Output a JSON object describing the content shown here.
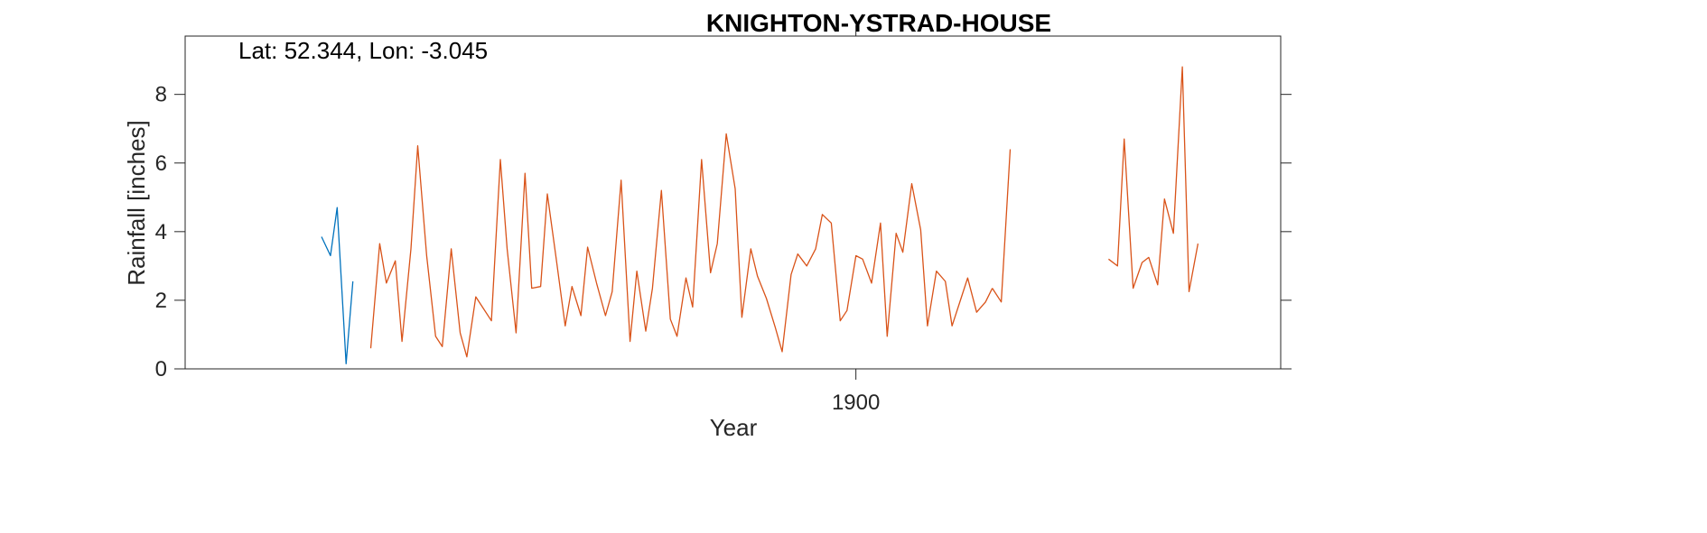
{
  "chart_data": {
    "type": "line",
    "title": "KNIGHTON-YSTRAD-HOUSE",
    "annotation": "Lat: 52.344, Lon: -3.045",
    "xlabel": "Year",
    "ylabel": "Rainfall [inches]",
    "xlim": [
      1870,
      1919
    ],
    "ylim": [
      0,
      9.7
    ],
    "xticks": [
      1900
    ],
    "xtick_labels": [
      "1900"
    ],
    "yticks": [
      0,
      2,
      4,
      6,
      8
    ],
    "ytick_labels": [
      "0",
      "2",
      "4",
      "6",
      "8"
    ],
    "grid": false,
    "colors": {
      "axis": "#262626",
      "series1": "#0072BD",
      "series2": "#D95319"
    },
    "series": [
      {
        "x": [
          1876.1,
          1876.5,
          1876.8,
          1877.2,
          1877.5
        ],
        "values": [
          3.85,
          3.3,
          4.7,
          0.15,
          2.55
        ]
      },
      {
        "x": [
          1878.3,
          1878.7,
          1879.0,
          1879.4,
          1879.7,
          1880.1,
          1880.4,
          1880.8,
          1881.2,
          1881.5,
          1881.9,
          1882.3,
          1882.6,
          1883.0,
          1883.3,
          1883.7,
          1884.1,
          1884.4,
          1884.8,
          1885.2,
          1885.5,
          1885.9,
          1886.2,
          1886.6,
          1887.0,
          1887.3,
          1887.7,
          1888.0,
          1888.4,
          1888.8,
          1889.1,
          1889.5,
          1889.9,
          1890.2,
          1890.6,
          1890.9,
          1891.3,
          1891.7,
          1892.0,
          1892.4,
          1892.7,
          1893.1,
          1893.5,
          1893.8,
          1894.2,
          1894.6,
          1894.9,
          1895.3,
          1895.6,
          1896.0,
          1896.4,
          1896.7,
          1897.1,
          1897.4,
          1897.8,
          1898.2,
          1898.5,
          1898.9,
          1899.3,
          1899.6,
          1900.0,
          1900.3,
          1900.7,
          1901.1,
          1901.4,
          1901.8,
          1902.1,
          1902.5,
          1902.9,
          1903.2,
          1903.6,
          1904.0,
          1904.3,
          1904.7,
          1905.0,
          1905.4,
          1905.8,
          1906.1
        ],
        "values": [
          0.6,
          3.65,
          2.5,
          3.15,
          0.8,
          3.5,
          6.5,
          3.3,
          0.95,
          0.65,
          3.5,
          1.05,
          0.35,
          2.1,
          1.8,
          1.4,
          6.1,
          3.5,
          1.05,
          5.7,
          2.35,
          2.4,
          5.1,
          3.2,
          1.25,
          2.4,
          1.55,
          3.55,
          2.5,
          1.55,
          2.25,
          5.5,
          0.8,
          2.85,
          1.1,
          2.35,
          5.2,
          1.45,
          0.95,
          2.65,
          1.8,
          6.1,
          2.8,
          3.65,
          6.85,
          5.25,
          1.5,
          3.5,
          2.7,
          2.05,
          1.2,
          0.5,
          2.75,
          3.35,
          3.0,
          3.5,
          4.5,
          4.25,
          1.4,
          1.7,
          3.3,
          3.2,
          2.5,
          4.25,
          0.95,
          3.95,
          3.4,
          5.4,
          4.05,
          1.25,
          2.85,
          2.55,
          1.25,
          2.05,
          2.65,
          1.65,
          1.95,
          2.35
        ]
      },
      {
        "x": [
          1906.1,
          1906.5,
          1906.9,
          1907.2
        ],
        "values": [
          2.35,
          1.95,
          6.4,
          null
        ]
      },
      {
        "x": [
          1911.3,
          1911.7,
          1912.0,
          1912.4,
          1912.8,
          1913.1,
          1913.5,
          1913.8,
          1914.2,
          1914.6,
          1914.9,
          1915.3,
          1915.7
        ],
        "values": [
          3.2,
          3.0,
          6.7,
          2.35,
          3.1,
          3.25,
          2.45,
          4.95,
          3.95,
          8.8,
          2.25,
          3.65,
          null
        ]
      }
    ]
  }
}
